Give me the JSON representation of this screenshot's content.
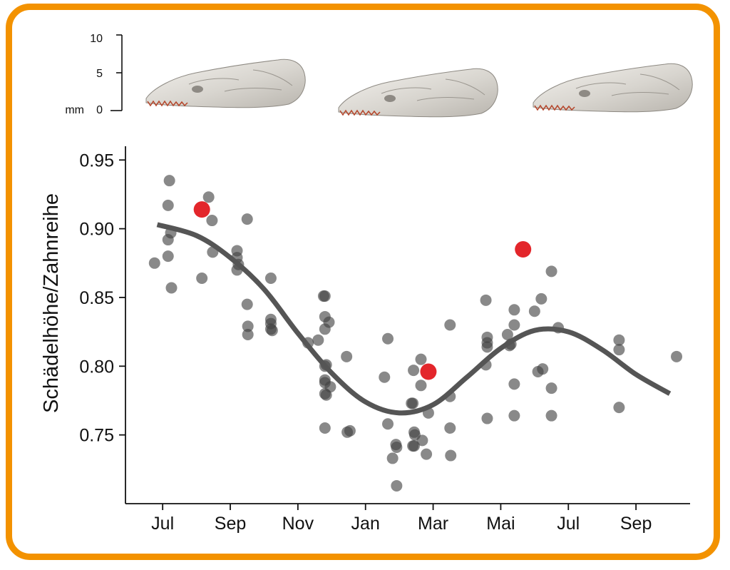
{
  "colors": {
    "frame": "#f39200",
    "points": "#404040",
    "highlight": "#e3262b",
    "trend": "#555555"
  },
  "scale_bar": {
    "unit": "mm",
    "ticks": [
      "10",
      "5",
      "0"
    ]
  },
  "skull_images": [
    {
      "name": "skull-image-summer-1",
      "icon": "shrew-skull"
    },
    {
      "name": "skull-image-winter",
      "icon": "shrew-skull"
    },
    {
      "name": "skull-image-summer-2",
      "icon": "shrew-skull"
    }
  ],
  "chart_data": {
    "type": "scatter",
    "title": "",
    "xlabel": "",
    "ylabel": "Schädelhöhe/Zahnreihe",
    "ylim": [
      0.7,
      0.96
    ],
    "yticks": [
      0.75,
      0.8,
      0.85,
      0.9,
      0.95
    ],
    "ytick_labels": [
      "0.75",
      "0.80",
      "0.85",
      "0.90",
      "0.95"
    ],
    "xlim": [
      -0.55,
      7.8
    ],
    "xticks": [
      0,
      1,
      2,
      3,
      4,
      5,
      6,
      7
    ],
    "xtick_labels": [
      "Jul",
      "Sep",
      "Nov",
      "Jan",
      "Mar",
      "Mai",
      "Jul",
      "Sep"
    ],
    "grid": false,
    "series": [
      {
        "kind": "points",
        "points": [
          [
            -0.12,
            0.875
          ],
          [
            0.1,
            0.935
          ],
          [
            0.08,
            0.917
          ],
          [
            0.12,
            0.897
          ],
          [
            0.08,
            0.892
          ],
          [
            0.08,
            0.88
          ],
          [
            0.13,
            0.857
          ],
          [
            0.58,
            0.864
          ],
          [
            0.68,
            0.923
          ],
          [
            0.73,
            0.906
          ],
          [
            0.74,
            0.883
          ],
          [
            1.1,
            0.884
          ],
          [
            1.1,
            0.879
          ],
          [
            1.12,
            0.874
          ],
          [
            1.1,
            0.87
          ],
          [
            1.25,
            0.907
          ],
          [
            1.25,
            0.845
          ],
          [
            1.26,
            0.829
          ],
          [
            1.26,
            0.823
          ],
          [
            1.6,
            0.864
          ],
          [
            1.6,
            0.834
          ],
          [
            1.6,
            0.831
          ],
          [
            1.6,
            0.827
          ],
          [
            1.62,
            0.826
          ],
          [
            2.15,
            0.817
          ],
          [
            2.3,
            0.819
          ],
          [
            2.38,
            0.851
          ],
          [
            2.4,
            0.851
          ],
          [
            2.4,
            0.836
          ],
          [
            2.4,
            0.827
          ],
          [
            2.4,
            0.8
          ],
          [
            2.42,
            0.801
          ],
          [
            2.4,
            0.79
          ],
          [
            2.4,
            0.788
          ],
          [
            2.46,
            0.832
          ],
          [
            2.48,
            0.785
          ],
          [
            2.4,
            0.78
          ],
          [
            2.42,
            0.779
          ],
          [
            2.4,
            0.755
          ],
          [
            2.72,
            0.807
          ],
          [
            2.73,
            0.752
          ],
          [
            2.77,
            0.753
          ],
          [
            3.28,
            0.792
          ],
          [
            3.33,
            0.82
          ],
          [
            3.33,
            0.758
          ],
          [
            3.4,
            0.733
          ],
          [
            3.45,
            0.743
          ],
          [
            3.46,
            0.741
          ],
          [
            3.46,
            0.713
          ],
          [
            3.68,
            0.773
          ],
          [
            3.7,
            0.773
          ],
          [
            3.71,
            0.797
          ],
          [
            3.72,
            0.752
          ],
          [
            3.73,
            0.75
          ],
          [
            3.7,
            0.742
          ],
          [
            3.72,
            0.742
          ],
          [
            3.82,
            0.805
          ],
          [
            3.82,
            0.786
          ],
          [
            3.84,
            0.746
          ],
          [
            3.9,
            0.736
          ],
          [
            3.93,
            0.766
          ],
          [
            4.25,
            0.83
          ],
          [
            4.25,
            0.778
          ],
          [
            4.25,
            0.755
          ],
          [
            4.26,
            0.735
          ],
          [
            4.78,
            0.848
          ],
          [
            4.8,
            0.821
          ],
          [
            4.8,
            0.817
          ],
          [
            4.8,
            0.814
          ],
          [
            4.78,
            0.801
          ],
          [
            4.8,
            0.762
          ],
          [
            5.1,
            0.823
          ],
          [
            5.13,
            0.815
          ],
          [
            5.15,
            0.816
          ],
          [
            5.2,
            0.841
          ],
          [
            5.2,
            0.83
          ],
          [
            5.2,
            0.787
          ],
          [
            5.2,
            0.764
          ],
          [
            5.5,
            0.84
          ],
          [
            5.55,
            0.796
          ],
          [
            5.6,
            0.849
          ],
          [
            5.62,
            0.798
          ],
          [
            5.75,
            0.869
          ],
          [
            5.75,
            0.784
          ],
          [
            5.75,
            0.764
          ],
          [
            5.85,
            0.828
          ],
          [
            6.75,
            0.819
          ],
          [
            6.75,
            0.812
          ],
          [
            6.75,
            0.77
          ],
          [
            7.6,
            0.807
          ]
        ]
      },
      {
        "kind": "highlight",
        "points": [
          [
            0.58,
            0.914
          ],
          [
            3.93,
            0.796
          ],
          [
            5.33,
            0.885
          ]
        ]
      },
      {
        "kind": "trend",
        "points": [
          [
            -0.08,
            0.903
          ],
          [
            0.5,
            0.895
          ],
          [
            1.0,
            0.879
          ],
          [
            1.5,
            0.856
          ],
          [
            2.0,
            0.824
          ],
          [
            2.5,
            0.795
          ],
          [
            3.0,
            0.774
          ],
          [
            3.5,
            0.766
          ],
          [
            4.0,
            0.772
          ],
          [
            4.5,
            0.792
          ],
          [
            5.0,
            0.813
          ],
          [
            5.5,
            0.826
          ],
          [
            6.0,
            0.825
          ],
          [
            6.5,
            0.812
          ],
          [
            7.0,
            0.794
          ],
          [
            7.5,
            0.78
          ]
        ]
      }
    ]
  }
}
